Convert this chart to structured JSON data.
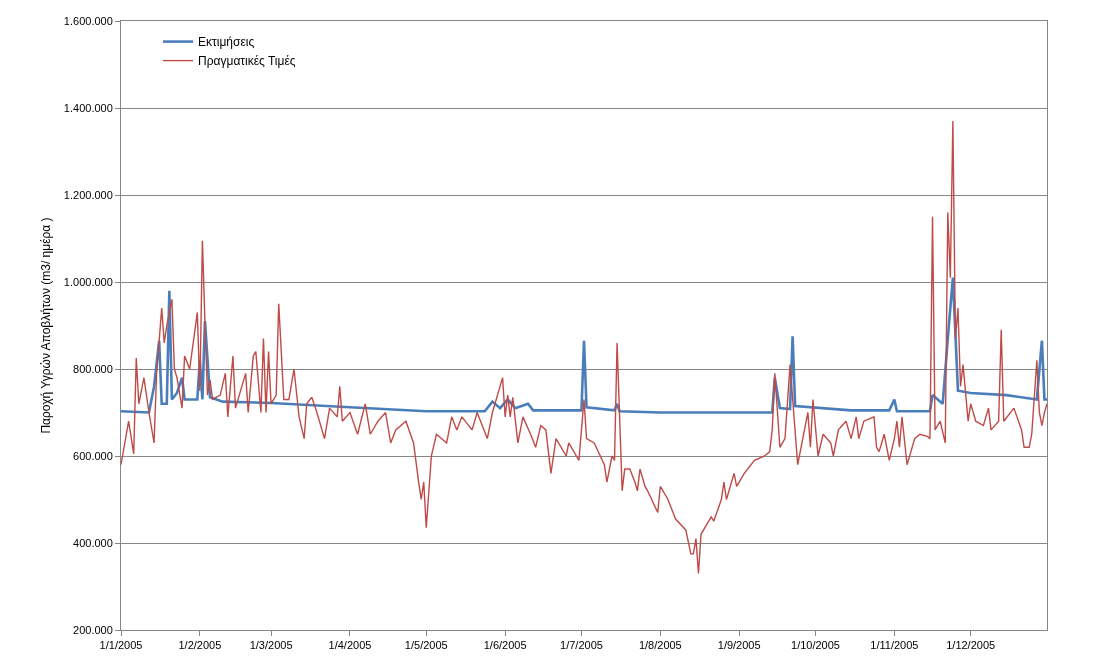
{
  "chart_data": {
    "type": "line",
    "ylabel": "Παροχή Υγρών Αποβλήτων (m3/ ημέρα )",
    "xlim": [
      "2005-01-01",
      "2005-12-31"
    ],
    "xticks": [
      {
        "value": "2005-01-01",
        "label": "1/1/2005"
      },
      {
        "value": "2005-02-01",
        "label": "1/2/2005"
      },
      {
        "value": "2005-03-01",
        "label": "1/3/2005"
      },
      {
        "value": "2005-04-01",
        "label": "1/4/2005"
      },
      {
        "value": "2005-05-01",
        "label": "1/5/2005"
      },
      {
        "value": "2005-06-01",
        "label": "1/6/2005"
      },
      {
        "value": "2005-07-01",
        "label": "1/7/2005"
      },
      {
        "value": "2005-08-01",
        "label": "1/8/2005"
      },
      {
        "value": "2005-09-01",
        "label": "1/9/2005"
      },
      {
        "value": "2005-10-01",
        "label": "1/10/2005"
      },
      {
        "value": "2005-11-01",
        "label": "1/11/2005"
      },
      {
        "value": "2005-12-01",
        "label": "1/12/2005"
      }
    ],
    "ylim": [
      200000,
      1600000
    ],
    "yticks": [
      {
        "value": 200000,
        "label": "200.000"
      },
      {
        "value": 400000,
        "label": "400.000"
      },
      {
        "value": 600000,
        "label": "600.000"
      },
      {
        "value": 800000,
        "label": "800.000"
      },
      {
        "value": 1000000,
        "label": "1.000.000"
      },
      {
        "value": 1200000,
        "label": "1.200.000"
      },
      {
        "value": 1400000,
        "label": "1.400.000"
      },
      {
        "value": 1600000,
        "label": "1.600.000"
      }
    ],
    "grid": "y",
    "legend": "top left",
    "marker": "none",
    "line_style": "solid",
    "series": [
      {
        "name": "Εκτιμήσεις",
        "color": "#4a7ebb",
        "x": [
          "2005-01-01",
          "2005-01-12",
          "2005-01-14",
          "2005-01-16",
          "2005-01-17",
          "2005-01-19",
          "2005-01-20",
          "2005-01-21",
          "2005-01-23",
          "2005-01-25",
          "2005-01-26",
          "2005-01-31",
          "2005-02-01",
          "2005-02-02",
          "2005-02-03",
          "2005-02-05",
          "2005-02-10",
          "2005-03-01",
          "2005-04-01",
          "2005-05-01",
          "2005-05-24",
          "2005-05-27",
          "2005-05-30",
          "2005-06-02",
          "2005-06-05",
          "2005-06-10",
          "2005-06-12",
          "2005-07-01",
          "2005-07-02",
          "2005-07-03",
          "2005-07-14",
          "2005-07-15",
          "2005-07-16",
          "2005-08-01",
          "2005-09-14",
          "2005-09-15",
          "2005-09-17",
          "2005-09-21",
          "2005-09-22",
          "2005-09-23",
          "2005-10-15",
          "2005-10-30",
          "2005-11-01",
          "2005-11-02",
          "2005-11-15",
          "2005-11-16",
          "2005-11-20",
          "2005-11-22",
          "2005-11-24",
          "2005-11-26",
          "2005-12-01",
          "2005-12-15",
          "2005-12-27",
          "2005-12-29",
          "2005-12-30",
          "2005-12-31"
        ],
        "values": [
          703000,
          700000,
          760000,
          865000,
          720000,
          720000,
          980000,
          730000,
          745000,
          780000,
          730000,
          730000,
          820000,
          730000,
          910000,
          735000,
          725000,
          722000,
          712000,
          703000,
          703000,
          725000,
          710000,
          730000,
          710000,
          720000,
          705000,
          705000,
          865000,
          712000,
          705000,
          720000,
          703000,
          700000,
          700000,
          780000,
          710000,
          708000,
          875000,
          715000,
          705000,
          705000,
          730000,
          703000,
          703000,
          740000,
          720000,
          870000,
          1010000,
          750000,
          745000,
          740000,
          730000,
          865000,
          730000,
          730000
        ]
      },
      {
        "name": "Πραγματικές Τιμές",
        "color": "#be4b48",
        "x": [
          "2005-01-01",
          "2005-01-04",
          "2005-01-06",
          "2005-01-07",
          "2005-01-08",
          "2005-01-10",
          "2005-01-12",
          "2005-01-14",
          "2005-01-15",
          "2005-01-17",
          "2005-01-18",
          "2005-01-19",
          "2005-01-21",
          "2005-01-22",
          "2005-01-23",
          "2005-01-25",
          "2005-01-26",
          "2005-01-28",
          "2005-01-31",
          "2005-02-01",
          "2005-02-02",
          "2005-02-03",
          "2005-02-04",
          "2005-02-05",
          "2005-02-06",
          "2005-02-09",
          "2005-02-11",
          "2005-02-12",
          "2005-02-14",
          "2005-02-15",
          "2005-02-19",
          "2005-02-20",
          "2005-02-22",
          "2005-02-23",
          "2005-02-25",
          "2005-02-26",
          "2005-02-27",
          "2005-02-28",
          "2005-03-01",
          "2005-03-03",
          "2005-03-04",
          "2005-03-06",
          "2005-03-08",
          "2005-03-10",
          "2005-03-12",
          "2005-03-14",
          "2005-03-15",
          "2005-03-17",
          "2005-03-19",
          "2005-03-22",
          "2005-03-24",
          "2005-03-27",
          "2005-03-28",
          "2005-03-29",
          "2005-04-01",
          "2005-04-04",
          "2005-04-07",
          "2005-04-09",
          "2005-04-12",
          "2005-04-15",
          "2005-04-17",
          "2005-04-19",
          "2005-04-23",
          "2005-04-26",
          "2005-04-28",
          "2005-04-29",
          "2005-04-30",
          "2005-05-01",
          "2005-05-03",
          "2005-05-05",
          "2005-05-09",
          "2005-05-11",
          "2005-05-13",
          "2005-05-15",
          "2005-05-19",
          "2005-05-21",
          "2005-05-25",
          "2005-05-27",
          "2005-05-30",
          "2005-05-31",
          "2005-06-01",
          "2005-06-02",
          "2005-06-03",
          "2005-06-04",
          "2005-06-06",
          "2005-06-08",
          "2005-06-11",
          "2005-06-13",
          "2005-06-15",
          "2005-06-17",
          "2005-06-19",
          "2005-06-21",
          "2005-06-25",
          "2005-06-26",
          "2005-06-28",
          "2005-06-30",
          "2005-07-02",
          "2005-07-03",
          "2005-07-06",
          "2005-07-10",
          "2005-07-11",
          "2005-07-13",
          "2005-07-14",
          "2005-07-15",
          "2005-07-17",
          "2005-07-18",
          "2005-07-20",
          "2005-07-22",
          "2005-07-23",
          "2005-07-24",
          "2005-07-26",
          "2005-07-27",
          "2005-07-31",
          "2005-08-01",
          "2005-08-04",
          "2005-08-07",
          "2005-08-11",
          "2005-08-13",
          "2005-08-14",
          "2005-08-15",
          "2005-08-16",
          "2005-08-17",
          "2005-08-21",
          "2005-08-22",
          "2005-08-25",
          "2005-08-26",
          "2005-08-27",
          "2005-08-30",
          "2005-08-31",
          "2005-09-03",
          "2005-09-07",
          "2005-09-11",
          "2005-09-13",
          "2005-09-14",
          "2005-09-15",
          "2005-09-17",
          "2005-09-19",
          "2005-09-21",
          "2005-09-24",
          "2005-09-26",
          "2005-09-28",
          "2005-09-29",
          "2005-09-30",
          "2005-10-02",
          "2005-10-04",
          "2005-10-07",
          "2005-10-08",
          "2005-10-10",
          "2005-10-13",
          "2005-10-15",
          "2005-10-17",
          "2005-10-18",
          "2005-10-20",
          "2005-10-24",
          "2005-10-25",
          "2005-10-26",
          "2005-10-28",
          "2005-10-30",
          "2005-11-01",
          "2005-11-02",
          "2005-11-03",
          "2005-11-04",
          "2005-11-06",
          "2005-11-09",
          "2005-11-11",
          "2005-11-14",
          "2005-11-15",
          "2005-11-16",
          "2005-11-17",
          "2005-11-19",
          "2005-11-21",
          "2005-11-22",
          "2005-11-23",
          "2005-11-24",
          "2005-11-25",
          "2005-11-26",
          "2005-11-27",
          "2005-11-28",
          "2005-11-30",
          "2005-12-01",
          "2005-12-03",
          "2005-12-06",
          "2005-12-08",
          "2005-12-09",
          "2005-12-12",
          "2005-12-13",
          "2005-12-14",
          "2005-12-18",
          "2005-12-21",
          "2005-12-22",
          "2005-12-24",
          "2005-12-25",
          "2005-12-27",
          "2005-12-28",
          "2005-12-29",
          "2005-12-30",
          "2005-12-31"
        ],
        "values": [
          580000,
          680000,
          605000,
          825000,
          720000,
          780000,
          700000,
          630000,
          790000,
          940000,
          860000,
          900000,
          960000,
          800000,
          780000,
          710000,
          830000,
          800000,
          930000,
          750000,
          1095000,
          910000,
          740000,
          775000,
          730000,
          740000,
          790000,
          690000,
          830000,
          710000,
          790000,
          700000,
          830000,
          840000,
          700000,
          870000,
          700000,
          840000,
          720000,
          740000,
          950000,
          730000,
          730000,
          800000,
          690000,
          640000,
          720000,
          735000,
          700000,
          640000,
          710000,
          690000,
          760000,
          680000,
          700000,
          650000,
          720000,
          650000,
          680000,
          700000,
          630000,
          660000,
          680000,
          630000,
          540000,
          500000,
          540000,
          435000,
          600000,
          650000,
          630000,
          690000,
          660000,
          690000,
          660000,
          700000,
          640000,
          700000,
          760000,
          780000,
          690000,
          740000,
          690000,
          735000,
          630000,
          690000,
          650000,
          620000,
          670000,
          660000,
          560000,
          640000,
          600000,
          630000,
          610000,
          590000,
          730000,
          640000,
          630000,
          580000,
          540000,
          600000,
          590000,
          860000,
          520000,
          570000,
          570000,
          540000,
          520000,
          570000,
          530000,
          520000,
          470000,
          530000,
          500000,
          455000,
          430000,
          375000,
          375000,
          410000,
          330000,
          420000,
          460000,
          450000,
          500000,
          540000,
          500000,
          560000,
          530000,
          560000,
          590000,
          600000,
          610000,
          660000,
          790000,
          620000,
          640000,
          810000,
          580000,
          640000,
          700000,
          620000,
          730000,
          600000,
          650000,
          630000,
          600000,
          660000,
          680000,
          640000,
          690000,
          640000,
          680000,
          690000,
          620000,
          610000,
          650000,
          590000,
          640000,
          680000,
          620000,
          690000,
          580000,
          640000,
          650000,
          645000,
          640000,
          1150000,
          660000,
          680000,
          630000,
          1160000,
          1010000,
          1370000,
          870000,
          940000,
          760000,
          810000,
          680000,
          720000,
          680000,
          670000,
          710000,
          660000,
          680000,
          890000,
          680000,
          710000,
          660000,
          620000,
          620000,
          650000,
          820000,
          700000,
          670000,
          700000,
          720000
        ]
      }
    ]
  }
}
